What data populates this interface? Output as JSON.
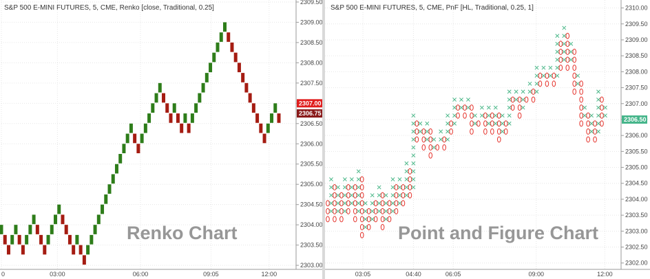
{
  "colors": {
    "up": "#2e7d1a",
    "down": "#a51c12",
    "pnf_x": "#4db88a",
    "pnf_o": "#e5312a",
    "grid": "#e6e6e6",
    "tag_red": "#e01e1e",
    "tag_darkred": "#8a1a1a",
    "tag_green": "#45b58a"
  },
  "chart_data": [
    {
      "type": "renko",
      "title": "S&P 500 E-MINI FUTURES, 5, CME, Renko [close, Traditional, 0.25]",
      "watermark": "Renko Chart",
      "box_size": 0.25,
      "ylim": [
        2302.9,
        2309.55
      ],
      "y_ticks": [
        "2303.00",
        "2303.50",
        "2304.00",
        "2304.50",
        "2305.00",
        "2305.50",
        "2306.00",
        "2306.50",
        "2307.00",
        "2307.50",
        "2308.00",
        "2308.50",
        "2309.00",
        "2309.50"
      ],
      "x_ticks": [
        {
          "label": "0",
          "col": 0
        },
        {
          "label": "03:00",
          "col": 14
        },
        {
          "label": "06:00",
          "col": 34
        },
        {
          "label": "09:05",
          "col": 51
        },
        {
          "label": "12:00",
          "col": 65
        }
      ],
      "total_cols": 72,
      "price_tags": [
        {
          "label": "2307.00",
          "value": 2307.0,
          "color": "tag_red"
        },
        {
          "label": "2306.75",
          "value": 2306.75,
          "color": "tag_darkred"
        }
      ],
      "bricks": [
        [
          2304,
          "up"
        ],
        [
          2303.75,
          "down"
        ],
        [
          2303.5,
          "down"
        ],
        [
          2303.75,
          "up"
        ],
        [
          2304,
          "up"
        ],
        [
          2303.75,
          "down"
        ],
        [
          2303.5,
          "down"
        ],
        [
          2303.75,
          "up"
        ],
        [
          2304,
          "up"
        ],
        [
          2304.25,
          "up"
        ],
        [
          2304,
          "down"
        ],
        [
          2303.75,
          "down"
        ],
        [
          2303.5,
          "down"
        ],
        [
          2303.75,
          "up"
        ],
        [
          2304,
          "up"
        ],
        [
          2304.25,
          "up"
        ],
        [
          2304.5,
          "up"
        ],
        [
          2304.25,
          "down"
        ],
        [
          2304,
          "down"
        ],
        [
          2303.75,
          "down"
        ],
        [
          2303.5,
          "down"
        ],
        [
          2303.75,
          "up"
        ],
        [
          2303.5,
          "down"
        ],
        [
          2303.25,
          "down"
        ],
        [
          2303.5,
          "up"
        ],
        [
          2303.75,
          "up"
        ],
        [
          2304,
          "up"
        ],
        [
          2304.25,
          "up"
        ],
        [
          2304.5,
          "up"
        ],
        [
          2304.75,
          "up"
        ],
        [
          2305,
          "up"
        ],
        [
          2305.25,
          "up"
        ],
        [
          2305.5,
          "up"
        ],
        [
          2305.75,
          "up"
        ],
        [
          2306,
          "up"
        ],
        [
          2306.25,
          "up"
        ],
        [
          2306.5,
          "up"
        ],
        [
          2306.25,
          "down"
        ],
        [
          2306,
          "down"
        ],
        [
          2306.25,
          "up"
        ],
        [
          2306.5,
          "up"
        ],
        [
          2306.75,
          "up"
        ],
        [
          2307,
          "up"
        ],
        [
          2307.25,
          "up"
        ],
        [
          2307.5,
          "up"
        ],
        [
          2307.25,
          "down"
        ],
        [
          2307,
          "down"
        ],
        [
          2306.75,
          "down"
        ],
        [
          2307,
          "up"
        ],
        [
          2306.75,
          "down"
        ],
        [
          2306.5,
          "down"
        ],
        [
          2306.75,
          "up"
        ],
        [
          2306.5,
          "down"
        ],
        [
          2306.75,
          "up"
        ],
        [
          2307,
          "up"
        ],
        [
          2307.25,
          "up"
        ],
        [
          2307.5,
          "up"
        ],
        [
          2307.75,
          "up"
        ],
        [
          2308,
          "up"
        ],
        [
          2308.25,
          "up"
        ],
        [
          2308.5,
          "up"
        ],
        [
          2308.75,
          "up"
        ],
        [
          2309,
          "up"
        ],
        [
          2308.75,
          "down"
        ],
        [
          2308.5,
          "down"
        ],
        [
          2308.25,
          "down"
        ],
        [
          2308,
          "down"
        ],
        [
          2307.75,
          "down"
        ],
        [
          2307.5,
          "down"
        ],
        [
          2307.25,
          "down"
        ],
        [
          2307,
          "down"
        ],
        [
          2306.75,
          "down"
        ],
        [
          2306.5,
          "down"
        ],
        [
          2306.25,
          "down"
        ],
        [
          2306.5,
          "up"
        ],
        [
          2306.75,
          "up"
        ],
        [
          2307,
          "up"
        ],
        [
          2306.75,
          "down"
        ]
      ]
    },
    {
      "type": "point_and_figure",
      "title": "S&P 500 E-MINI FUTURES, 5, CME, PnF [HL, Traditional, 0.25, 1]",
      "watermark": "Point and Figure Chart",
      "box_size": 0.25,
      "reversal": 1,
      "ylim": [
        2301.8,
        2310.25
      ],
      "y_ticks": [
        "2302.00",
        "2302.50",
        "2303.00",
        "2303.50",
        "2304.00",
        "2304.50",
        "2305.00",
        "2305.50",
        "2306.00",
        "2306.50",
        "2307.00",
        "2307.50",
        "2308.00",
        "2308.50",
        "2309.00",
        "2309.50",
        "2310.00"
      ],
      "x_ticks": [
        {
          "label": "03:05",
          "col": 10
        },
        {
          "label": "04:40",
          "col": 24
        },
        {
          "label": "06:05",
          "col": 35
        },
        {
          "label": "09:00",
          "col": 58
        },
        {
          "label": "12:00",
          "col": 77
        }
      ],
      "total_cols": 82,
      "price_tags": [
        {
          "label": "2306.50",
          "value": 2306.5,
          "color": "tag_green"
        }
      ],
      "columns": [
        {
          "type": "O",
          "high": 2304,
          "low": 2303.5
        },
        {
          "type": "X",
          "high": 2304.75,
          "low": 2303.75
        },
        {
          "type": "O",
          "high": 2304.5,
          "low": 2303.5
        },
        {
          "type": "X",
          "high": 2304.5,
          "low": 2303.75
        },
        {
          "type": "O",
          "high": 2304.25,
          "low": 2303.5
        },
        {
          "type": "X",
          "high": 2304.75,
          "low": 2303.75
        },
        {
          "type": "O",
          "high": 2304.5,
          "low": 2303.75
        },
        {
          "type": "X",
          "high": 2304.75,
          "low": 2304
        },
        {
          "type": "O",
          "high": 2304.5,
          "low": 2303.5
        },
        {
          "type": "X",
          "high": 2305,
          "low": 2303.75
        },
        {
          "type": "O",
          "high": 2304.75,
          "low": 2303
        },
        {
          "type": "X",
          "high": 2304,
          "low": 2303.25
        },
        {
          "type": "O",
          "high": 2303.75,
          "low": 2303.25
        },
        {
          "type": "X",
          "high": 2304.25,
          "low": 2303.5
        },
        {
          "type": "O",
          "high": 2304,
          "low": 2303.5
        },
        {
          "type": "X",
          "high": 2304.5,
          "low": 2303.75
        },
        {
          "type": "O",
          "high": 2304.25,
          "low": 2303.25
        },
        {
          "type": "X",
          "high": 2304.25,
          "low": 2303.5
        },
        {
          "type": "O",
          "high": 2304,
          "low": 2303.5
        },
        {
          "type": "X",
          "high": 2304.75,
          "low": 2303.75
        },
        {
          "type": "O",
          "high": 2304.5,
          "low": 2303.75
        },
        {
          "type": "X",
          "high": 2304.75,
          "low": 2304
        },
        {
          "type": "O",
          "high": 2304.5,
          "low": 2304
        },
        {
          "type": "X",
          "high": 2305.25,
          "low": 2304.25
        },
        {
          "type": "O",
          "high": 2305,
          "low": 2304.25
        },
        {
          "type": "X",
          "high": 2306.75,
          "low": 2304.5
        },
        {
          "type": "O",
          "high": 2306.5,
          "low": 2306
        },
        {
          "type": "X",
          "high": 2306.5,
          "low": 2306.25
        },
        {
          "type": "O",
          "high": 2306.25,
          "low": 2305.75
        },
        {
          "type": "X",
          "high": 2306.5,
          "low": 2306
        },
        {
          "type": "O",
          "high": 2306.25,
          "low": 2305.5
        },
        {
          "type": "X",
          "high": 2306,
          "low": 2305.75
        },
        {
          "type": "O",
          "high": 2305.75,
          "low": 2305.75
        },
        {
          "type": "X",
          "high": 2306.25,
          "low": 2306
        },
        {
          "type": "O",
          "high": 2306,
          "low": 2305.75
        },
        {
          "type": "X",
          "high": 2306.75,
          "low": 2306
        },
        {
          "type": "O",
          "high": 2306.5,
          "low": 2306.25
        },
        {
          "type": "X",
          "high": 2307.25,
          "low": 2306.5
        },
        {
          "type": "O",
          "high": 2307,
          "low": 2306.75
        },
        {
          "type": "X",
          "high": 2307.25,
          "low": 2307
        },
        {
          "type": "O",
          "high": 2307,
          "low": 2306.75
        },
        {
          "type": "X",
          "high": 2307.25,
          "low": 2307
        },
        {
          "type": "O",
          "high": 2307,
          "low": 2306.25
        },
        {
          "type": "X",
          "high": 2306.75,
          "low": 2306.5
        },
        {
          "type": "O",
          "high": 2306.5,
          "low": 2306.5
        },
        {
          "type": "X",
          "high": 2307,
          "low": 2306.75
        },
        {
          "type": "O",
          "high": 2306.75,
          "low": 2306.25
        },
        {
          "type": "X",
          "high": 2307,
          "low": 2306.5
        },
        {
          "type": "O",
          "high": 2306.75,
          "low": 2306.25
        },
        {
          "type": "X",
          "high": 2307,
          "low": 2306.5
        },
        {
          "type": "O",
          "high": 2306.75,
          "low": 2306
        },
        {
          "type": "X",
          "high": 2306.75,
          "low": 2306.25
        },
        {
          "type": "O",
          "high": 2306.5,
          "low": 2306.25
        },
        {
          "type": "X",
          "high": 2307.5,
          "low": 2306.5
        },
        {
          "type": "O",
          "high": 2307.25,
          "low": 2307
        },
        {
          "type": "X",
          "high": 2307.5,
          "low": 2307.25
        },
        {
          "type": "O",
          "high": 2307.25,
          "low": 2306.75
        },
        {
          "type": "X",
          "high": 2307.5,
          "low": 2307
        },
        {
          "type": "O",
          "high": 2307.25,
          "low": 2307.25
        },
        {
          "type": "X",
          "high": 2307.75,
          "low": 2307.5
        },
        {
          "type": "O",
          "high": 2307.5,
          "low": 2307.25
        },
        {
          "type": "X",
          "high": 2308.25,
          "low": 2307.5
        },
        {
          "type": "O",
          "high": 2308,
          "low": 2307.75
        },
        {
          "type": "X",
          "high": 2308.25,
          "low": 2308
        },
        {
          "type": "O",
          "high": 2308,
          "low": 2307.75
        },
        {
          "type": "X",
          "high": 2308.25,
          "low": 2308
        },
        {
          "type": "O",
          "high": 2308,
          "low": 2307.75
        },
        {
          "type": "X",
          "high": 2309.25,
          "low": 2308
        },
        {
          "type": "O",
          "high": 2309,
          "low": 2308.25
        },
        {
          "type": "X",
          "high": 2309.5,
          "low": 2308.5
        },
        {
          "type": "O",
          "high": 2309.25,
          "low": 2308.25
        },
        {
          "type": "X",
          "high": 2309,
          "low": 2308.5
        },
        {
          "type": "O",
          "high": 2308.75,
          "low": 2307.5
        },
        {
          "type": "X",
          "high": 2308,
          "low": 2307.75
        },
        {
          "type": "O",
          "high": 2307.75,
          "low": 2306.5
        },
        {
          "type": "X",
          "high": 2307,
          "low": 2306.75
        },
        {
          "type": "O",
          "high": 2306.75,
          "low": 2306
        },
        {
          "type": "X",
          "high": 2306.75,
          "low": 2306.25
        },
        {
          "type": "O",
          "high": 2306.5,
          "low": 2306
        },
        {
          "type": "X",
          "high": 2307.5,
          "low": 2306.25
        },
        {
          "type": "O",
          "high": 2307.25,
          "low": 2306.5
        },
        {
          "type": "X",
          "high": 2307,
          "low": 2306.75
        }
      ]
    }
  ]
}
